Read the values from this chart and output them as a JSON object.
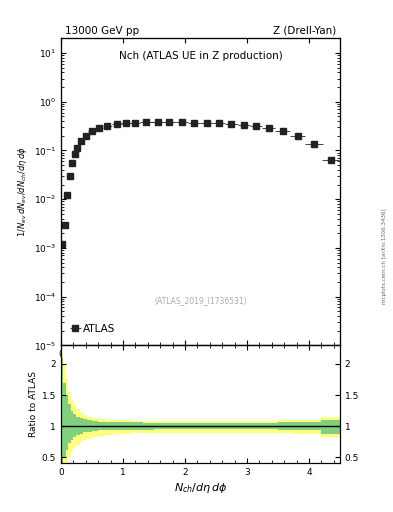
{
  "title_left": "13000 GeV pp",
  "title_right": "Z (Drell-Yan)",
  "plot_title": "Nch (ATLAS UE in Z production)",
  "xlabel": "$N_{ch}/d\\eta\\,d\\phi$",
  "ylabel_main": "$1/N_{ev}\\,dN_{ev}/dN_{ch}/d\\eta\\,d\\phi$",
  "ylabel_ratio": "Ratio to ATLAS",
  "watermark": "(ATLAS_2019_I1736531)",
  "legend_label": "ATLAS",
  "side_text": "mcplots.cern.ch [arXiv:1306.3436]",
  "main_xlim": [
    0,
    4.5
  ],
  "main_ylim_log": [
    1e-05,
    20
  ],
  "ratio_ylim": [
    0.4,
    2.3
  ],
  "data_x": [
    0.02,
    0.06,
    0.1,
    0.14,
    0.18,
    0.22,
    0.26,
    0.32,
    0.4,
    0.5,
    0.62,
    0.75,
    0.9,
    1.05,
    1.2,
    1.38,
    1.56,
    1.75,
    1.95,
    2.15,
    2.35,
    2.55,
    2.75,
    2.95,
    3.15,
    3.35,
    3.58,
    3.82,
    4.08,
    4.35
  ],
  "data_y": [
    0.0012,
    0.003,
    0.012,
    0.03,
    0.055,
    0.085,
    0.11,
    0.155,
    0.2,
    0.255,
    0.295,
    0.325,
    0.345,
    0.365,
    0.375,
    0.38,
    0.385,
    0.385,
    0.38,
    0.375,
    0.365,
    0.36,
    0.35,
    0.34,
    0.32,
    0.295,
    0.255,
    0.195,
    0.135,
    0.065
  ],
  "data_xerr": [
    0.02,
    0.02,
    0.02,
    0.02,
    0.02,
    0.02,
    0.02,
    0.04,
    0.04,
    0.06,
    0.06,
    0.07,
    0.08,
    0.08,
    0.08,
    0.1,
    0.1,
    0.1,
    0.1,
    0.1,
    0.1,
    0.1,
    0.1,
    0.1,
    0.1,
    0.1,
    0.12,
    0.12,
    0.14,
    0.14
  ],
  "ratio_x_edges": [
    0.0,
    0.04,
    0.08,
    0.12,
    0.16,
    0.2,
    0.25,
    0.3,
    0.35,
    0.42,
    0.5,
    0.6,
    0.72,
    0.85,
    1.0,
    1.15,
    1.32,
    1.5,
    1.7,
    1.9,
    2.1,
    2.3,
    2.5,
    2.7,
    2.9,
    3.1,
    3.3,
    3.5,
    3.72,
    3.95,
    4.2,
    4.5
  ],
  "ratio_green_upper": [
    2.1,
    1.7,
    1.5,
    1.35,
    1.25,
    1.2,
    1.15,
    1.13,
    1.11,
    1.09,
    1.08,
    1.07,
    1.065,
    1.06,
    1.06,
    1.058,
    1.055,
    1.055,
    1.055,
    1.055,
    1.055,
    1.055,
    1.055,
    1.055,
    1.055,
    1.055,
    1.055,
    1.06,
    1.06,
    1.07,
    1.1,
    1.15
  ],
  "ratio_green_lower": [
    0.3,
    0.5,
    0.62,
    0.72,
    0.78,
    0.82,
    0.86,
    0.88,
    0.9,
    0.91,
    0.92,
    0.93,
    0.935,
    0.94,
    0.94,
    0.942,
    0.944,
    0.945,
    0.945,
    0.945,
    0.945,
    0.945,
    0.945,
    0.945,
    0.945,
    0.945,
    0.945,
    0.94,
    0.94,
    0.93,
    0.88,
    0.82
  ],
  "ratio_yellow_upper": [
    2.2,
    2.0,
    1.75,
    1.55,
    1.42,
    1.35,
    1.28,
    1.22,
    1.18,
    1.15,
    1.13,
    1.11,
    1.1,
    1.09,
    1.09,
    1.088,
    1.085,
    1.085,
    1.085,
    1.085,
    1.085,
    1.085,
    1.085,
    1.085,
    1.085,
    1.085,
    1.085,
    1.09,
    1.09,
    1.1,
    1.15,
    1.25
  ],
  "ratio_yellow_lower": [
    0.15,
    0.25,
    0.38,
    0.5,
    0.58,
    0.64,
    0.7,
    0.74,
    0.77,
    0.8,
    0.82,
    0.84,
    0.855,
    0.87,
    0.88,
    0.885,
    0.89,
    0.895,
    0.895,
    0.895,
    0.895,
    0.895,
    0.895,
    0.895,
    0.895,
    0.895,
    0.895,
    0.89,
    0.88,
    0.87,
    0.82,
    0.72
  ],
  "marker_color": "#222222",
  "marker_size": 4.0,
  "green_color": "#80d080",
  "yellow_color": "#ffff80",
  "background_color": "#ffffff"
}
